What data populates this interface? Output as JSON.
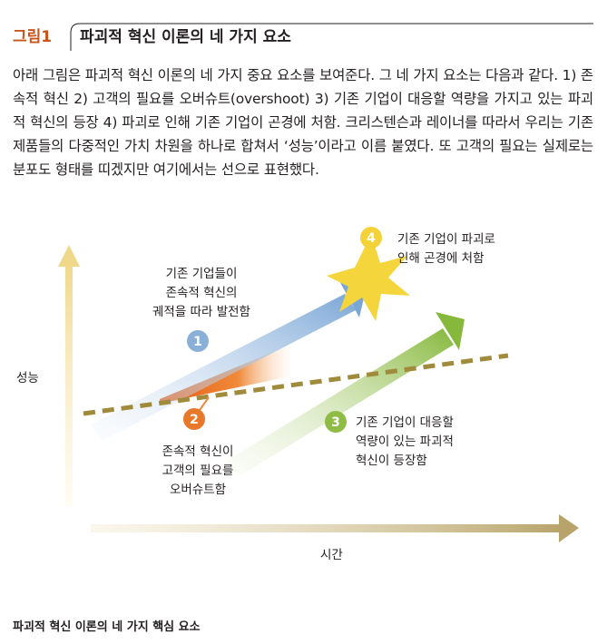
{
  "figure": {
    "badge": "그림1",
    "title": "파괴적 혁신 이론의 네 가지 요소"
  },
  "body_text": "아래 그림은 파괴적 혁신 이론의 네 가지 중요 요소를 보여준다. 그 네 가지 요소는 다음과 같다. 1) 존속적 혁신 2) 고객의 필요를 오버슈트(overshoot) 3) 기존 기업이 대응할 역량을 가지고 있는 파괴적 혁신의 등장 4) 파괴로 인해 기존 기업이 곤경에 처함. 크리스텐슨과 레이너를 따라서 우리는 기존 제품들의 다중적인 가치 차원을 하나로 합쳐서 ‘성능’이라고 이름 붙였다. 또 고객의 필요는 실제로는 분포도 형태를 띠겠지만 여기에서는 선으로 표현했다.",
  "diagram": {
    "y_axis_label": "성능",
    "x_axis_label": "시간",
    "elements": [
      {
        "number": "1",
        "lines": [
          "기존 기업들이",
          "존속적 혁신의",
          "궤적을 따라 발전함"
        ],
        "color": "#8ab0d8"
      },
      {
        "number": "2",
        "lines": [
          "존속적 혁신이",
          "고객의 필요를",
          "오버슈트함"
        ],
        "color": "#e8792a"
      },
      {
        "number": "3",
        "lines": [
          "기존 기업이 대응할",
          "역량이 있는 파괴적",
          "혁신이 등장함"
        ],
        "color": "#8fbc45"
      },
      {
        "number": "4",
        "lines": [
          "기존 기업이 파괴로",
          "인해 곤경에 처함"
        ],
        "color": "#f3d23a"
      }
    ],
    "colors": {
      "axis_y": "#f0d88a",
      "axis_x": "#b8a46a",
      "needs_line": "#a08a3c",
      "accent": "#c8541a"
    }
  },
  "caption": "파괴적 혁신 이론의 네 가지 핵심 요소"
}
